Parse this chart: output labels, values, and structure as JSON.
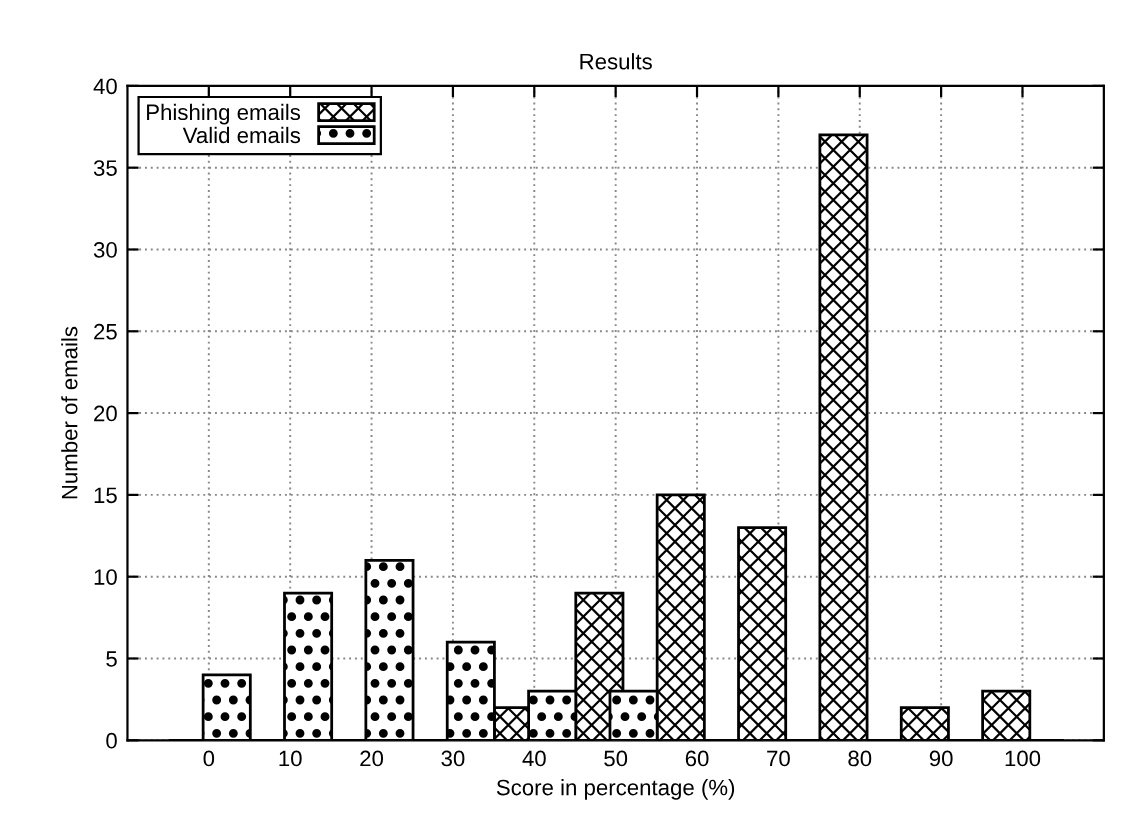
{
  "chart_data": {
    "type": "bar",
    "title": "Results",
    "xlabel": "Score in percentage (%)",
    "ylabel": "Number of emails",
    "categories": [
      "0",
      "10",
      "20",
      "30",
      "40",
      "50",
      "60",
      "70",
      "80",
      "90",
      "100"
    ],
    "series": [
      {
        "name": "Phishing emails",
        "color": "#000000",
        "values": [
          0,
          0,
          0,
          0,
          2,
          9,
          15,
          13,
          37,
          2,
          3
        ]
      },
      {
        "name": "Valid emails",
        "color": "#000000",
        "values": [
          4,
          9,
          11,
          6,
          3,
          3,
          0,
          0,
          0,
          0,
          0
        ]
      }
    ],
    "ylim": [
      0,
      40
    ],
    "yticks": [
      0,
      5,
      10,
      15,
      20,
      25,
      30,
      35,
      40
    ],
    "grid": true,
    "legend": "top left"
  }
}
